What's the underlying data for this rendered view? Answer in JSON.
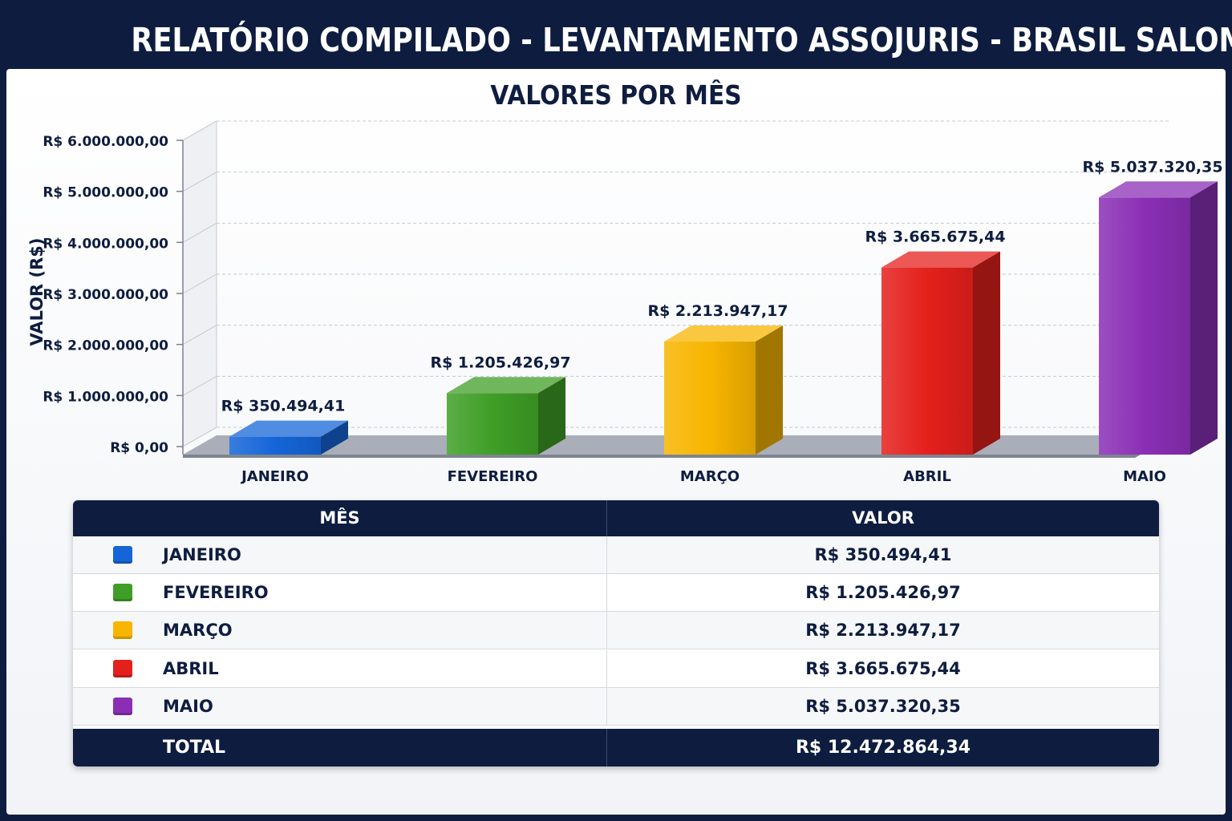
{
  "header": {
    "title": "RELATÓRIO COMPILADO - LEVANTAMENTO ASSOJURIS - BRASIL SALOMÃO"
  },
  "chart_data": {
    "type": "bar",
    "title": "VALORES POR MÊS",
    "xlabel": "",
    "ylabel": "VALOR (R$)",
    "ylim": [
      0,
      6000000
    ],
    "yticks": [
      {
        "value": 0,
        "label": "R$ 0,00"
      },
      {
        "value": 1000000,
        "label": "R$ 1.000.000,00"
      },
      {
        "value": 2000000,
        "label": "R$ 2.000.000,00"
      },
      {
        "value": 3000000,
        "label": "R$ 3.000.000,00"
      },
      {
        "value": 4000000,
        "label": "R$ 4.000.000,00"
      },
      {
        "value": 5000000,
        "label": "R$ 5.000.000,00"
      },
      {
        "value": 6000000,
        "label": "R$ 6.000.000,00"
      }
    ],
    "grid": true,
    "categories": [
      "JANEIRO",
      "FEVEREIRO",
      "MARÇO",
      "ABRIL",
      "MAIO"
    ],
    "values": [
      350494.41,
      1205426.97,
      2213947.17,
      3665675.44,
      5037320.35
    ],
    "data_labels": [
      "R$ 350.494,41",
      "R$ 1.205.426,97",
      "R$ 2.213.947,17",
      "R$ 3.665.675,44",
      "R$ 5.037.320,35"
    ],
    "colors": [
      "#1565d8",
      "#3f9e27",
      "#f7b500",
      "#e4201c",
      "#8a2fb5"
    ]
  },
  "table": {
    "headers": {
      "month": "MÊS",
      "value": "VALOR"
    },
    "rows": [
      {
        "month": "JANEIRO",
        "value": "R$ 350.494,41",
        "color": "#1565d8"
      },
      {
        "month": "FEVEREIRO",
        "value": "R$ 1.205.426,97",
        "color": "#3f9e27"
      },
      {
        "month": "MARÇO",
        "value": "R$ 2.213.947,17",
        "color": "#f7b500"
      },
      {
        "month": "ABRIL",
        "value": "R$ 3.665.675,44",
        "color": "#e4201c"
      },
      {
        "month": "MAIO",
        "value": "R$ 5.037.320,35",
        "color": "#8a2fb5"
      }
    ],
    "total": {
      "label": "TOTAL",
      "value": "R$ 12.472.864,34"
    }
  }
}
